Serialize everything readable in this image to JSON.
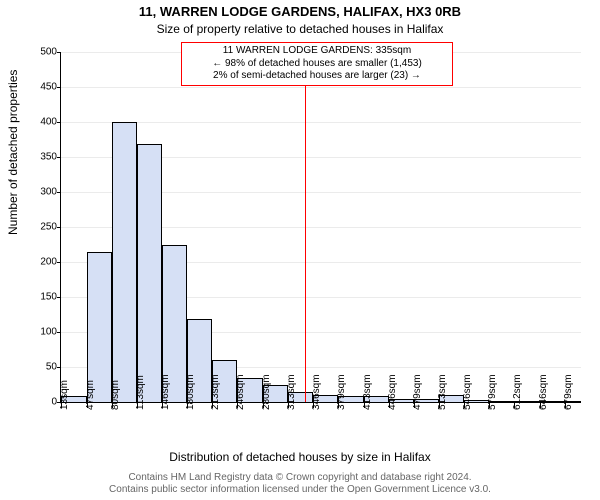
{
  "title": "11, WARREN LODGE GARDENS, HALIFAX, HX3 0RB",
  "subtitle": "Size of property relative to detached houses in Halifax",
  "ylabel": "Number of detached properties",
  "xlabel": "Distribution of detached houses by size in Halifax",
  "footer_line1": "Contains HM Land Registry data © Crown copyright and database right 2024.",
  "footer_line2": "Contains public sector information licensed under the Open Government Licence v3.0.",
  "chart": {
    "type": "histogram",
    "xlim": [
      13,
      700
    ],
    "ylim": [
      0,
      500
    ],
    "ytick_step": 50,
    "bar_color_fill": "#d6e0f5",
    "bar_color_stroke": "#000000",
    "bar_stroke_width": 0.5,
    "grid_color": "#000000",
    "grid_opacity": 0.08,
    "background_color": "#ffffff",
    "xtick_labels": [
      "13sqm",
      "47sqm",
      "80sqm",
      "113sqm",
      "146sqm",
      "180sqm",
      "213sqm",
      "246sqm",
      "280sqm",
      "313sqm",
      "346sqm",
      "379sqm",
      "413sqm",
      "446sqm",
      "479sqm",
      "513sqm",
      "546sqm",
      "579sqm",
      "612sqm",
      "646sqm",
      "679sqm"
    ],
    "xtick_positions": [
      13,
      47,
      80,
      113,
      146,
      180,
      213,
      246,
      280,
      313,
      346,
      379,
      413,
      446,
      479,
      513,
      546,
      579,
      612,
      646,
      679
    ],
    "bin_edges": [
      13,
      47,
      80,
      113,
      146,
      180,
      213,
      246,
      280,
      313,
      346,
      379,
      413,
      446,
      479,
      513,
      546,
      579,
      612,
      646,
      679,
      700
    ],
    "bin_counts": [
      8,
      215,
      400,
      368,
      225,
      118,
      60,
      35,
      25,
      15,
      10,
      8,
      8,
      5,
      4,
      10,
      3,
      0,
      0,
      1,
      1
    ],
    "marker": {
      "x": 335,
      "line_color": "#ff0000",
      "annotation_lines": [
        "11 WARREN LODGE GARDENS: 335sqm",
        "← 98% of detached houses are smaller (1,453)",
        "2% of semi-detached houses are larger (23) →"
      ],
      "annotation_border_color": "#ff0000",
      "annotation_font_size": 10
    }
  }
}
